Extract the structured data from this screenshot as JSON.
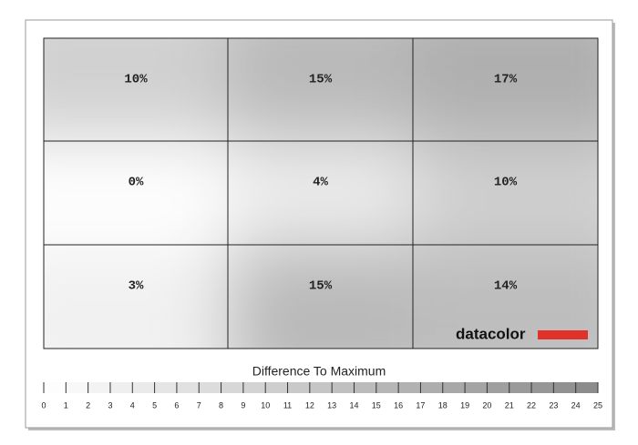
{
  "chart_data": {
    "type": "heatmap",
    "values": [
      [
        10,
        15,
        17
      ],
      [
        0,
        4,
        10
      ],
      [
        3,
        15,
        14
      ]
    ],
    "value_labels": [
      [
        "10%",
        "15%",
        "17%"
      ],
      [
        "0%",
        "4%",
        "10%"
      ],
      [
        "3%",
        "15%",
        "14%"
      ]
    ],
    "colorbar_title": "Difference To Maximum",
    "clim": [
      0,
      25
    ],
    "cticks": [
      0,
      1,
      2,
      3,
      4,
      5,
      6,
      7,
      8,
      9,
      10,
      11,
      12,
      13,
      14,
      15,
      16,
      17,
      18,
      19,
      20,
      21,
      22,
      23,
      24,
      25
    ],
    "colorscale": [
      "#ffffff",
      "#8a8a8a"
    ],
    "brand": "datacolor"
  }
}
